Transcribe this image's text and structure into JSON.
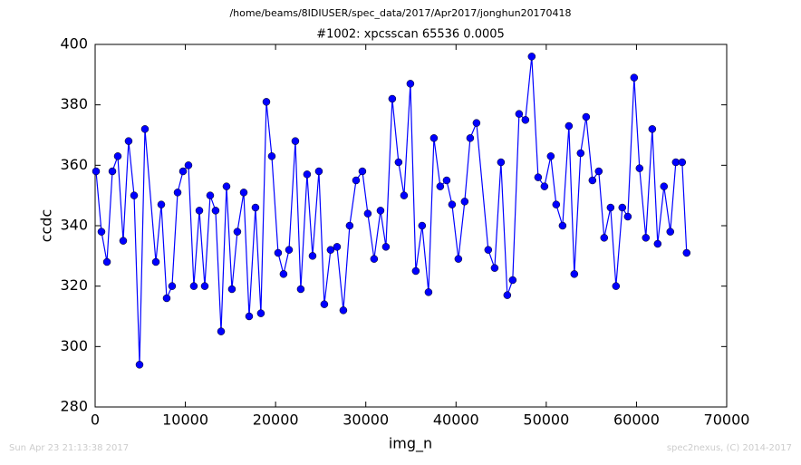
{
  "header": {
    "path": "/home/beams/8IDIUSER/spec_data/2017/Apr2017/jonghun20170418"
  },
  "footer": {
    "date": "Sun Apr 23 21:13:38 2017",
    "credit": "spec2nexus, (C) 2014-2017"
  },
  "chart_data": {
    "type": "line",
    "title": "#1002: xpcsscan 65536 0.0005",
    "xlabel": "img_n",
    "ylabel": "ccdc",
    "x": [
      100,
      700,
      1310,
      1910,
      2510,
      3110,
      3710,
      4320,
      4920,
      5520,
      6730,
      7330,
      7930,
      8530,
      9140,
      9740,
      10340,
      10940,
      11550,
      12150,
      12750,
      13350,
      13960,
      14560,
      15160,
      15760,
      16470,
      17070,
      17770,
      18370,
      18980,
      19580,
      20280,
      20880,
      21490,
      22190,
      22790,
      23490,
      24100,
      24800,
      25400,
      26100,
      26810,
      27510,
      28210,
      28920,
      29620,
      30220,
      30920,
      31630,
      32230,
      32930,
      33630,
      34240,
      34940,
      35540,
      36240,
      36950,
      37550,
      38250,
      38960,
      39560,
      40260,
      40960,
      41570,
      42270,
      43570,
      44280,
      44980,
      45680,
      46280,
      46990,
      47690,
      48390,
      49100,
      49800,
      50500,
      51100,
      51810,
      52510,
      53110,
      53810,
      54420,
      55120,
      55820,
      56420,
      57130,
      57730,
      58430,
      59040,
      59740,
      60340,
      61040,
      61750,
      62350,
      63050,
      63750,
      64360,
      65060,
      65560
    ],
    "series": [
      {
        "name": "ccdc",
        "color": "#0000ff",
        "values": [
          358,
          338,
          328,
          358,
          363,
          335,
          368,
          350,
          294,
          372,
          328,
          347,
          316,
          320,
          351,
          358,
          360,
          320,
          345,
          320,
          350,
          345,
          305,
          353,
          319,
          338,
          351,
          310,
          346,
          311,
          381,
          363,
          331,
          324,
          332,
          368,
          319,
          357,
          330,
          358,
          314,
          332,
          333,
          312,
          340,
          355,
          358,
          344,
          329,
          345,
          333,
          382,
          361,
          350,
          387,
          325,
          340,
          318,
          369,
          353,
          355,
          347,
          329,
          348,
          369,
          374,
          332,
          326,
          361,
          317,
          322,
          377,
          375,
          396,
          356,
          353,
          363,
          347,
          340,
          373,
          324,
          364,
          376,
          355,
          358,
          336,
          346,
          320,
          346,
          343,
          389,
          359,
          336,
          372,
          334,
          353,
          338,
          361,
          361,
          331
        ]
      }
    ],
    "xlim": [
      0,
      70000
    ],
    "xticks": [
      0,
      10000,
      20000,
      30000,
      40000,
      50000,
      60000,
      70000
    ],
    "ylim": [
      280,
      400
    ],
    "yticks": [
      280,
      300,
      320,
      340,
      360,
      380,
      400
    ],
    "grid": false
  }
}
